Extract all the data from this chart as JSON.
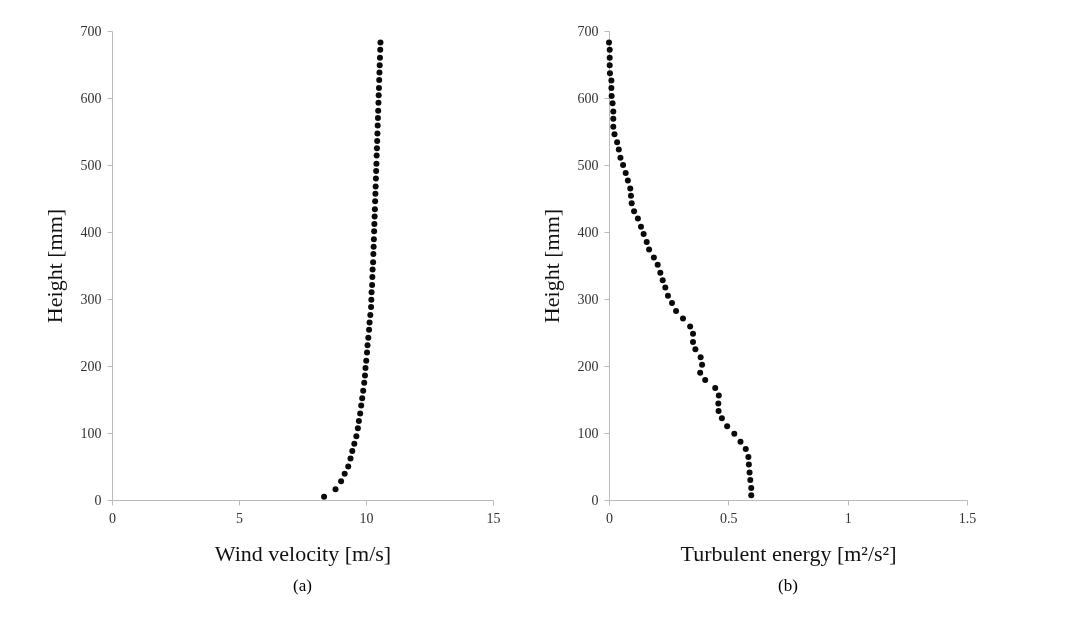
{
  "chart_data": [
    {
      "type": "scatter",
      "title": "(a)",
      "xlabel": "Wind velocity [m/s]",
      "ylabel": "Height [mm]",
      "xlim": [
        0,
        15
      ],
      "xticks": [
        0,
        5,
        10,
        15
      ],
      "ylim": [
        0,
        700
      ],
      "yticks": [
        0,
        100,
        200,
        300,
        400,
        500,
        600,
        700
      ],
      "grid": false,
      "marker": "circle",
      "series": [
        {
          "color": "#0a0a0a",
          "x": [
            8.35,
            8.8,
            9.02,
            9.16,
            9.3,
            9.39,
            9.46,
            9.54,
            9.62,
            9.68,
            9.72,
            9.77,
            9.81,
            9.85,
            9.89,
            9.93,
            9.96,
            9.98,
            10.01,
            10.04,
            10.06,
            10.09,
            10.12,
            10.14,
            10.17,
            10.2,
            10.21,
            10.22,
            10.24,
            10.25,
            10.26,
            10.28,
            10.29,
            10.3,
            10.31,
            10.32,
            10.33,
            10.34,
            10.35,
            10.36,
            10.37,
            10.38,
            10.39,
            10.4,
            10.41,
            10.42,
            10.43,
            10.44,
            10.45,
            10.46,
            10.47,
            10.48,
            10.49,
            10.5,
            10.51,
            10.52,
            10.53,
            10.54,
            10.55,
            10.56,
            10.57
          ],
          "values": [
            5,
            16,
            28,
            39,
            50,
            62,
            73,
            84,
            95,
            107,
            118,
            129,
            141,
            152,
            163,
            175,
            186,
            197,
            208,
            220,
            231,
            242,
            254,
            265,
            276,
            288,
            299,
            310,
            321,
            333,
            344,
            355,
            367,
            378,
            389,
            401,
            412,
            423,
            434,
            446,
            457,
            468,
            480,
            491,
            502,
            514,
            525,
            536,
            547,
            559,
            570,
            581,
            593,
            604,
            615,
            627,
            638,
            649,
            660,
            672,
            683
          ]
        }
      ]
    },
    {
      "type": "scatter",
      "title": "(b)",
      "xlabel": "Turbulent energy [m²/s²]",
      "ylabel": "Height  [mm]",
      "xlim": [
        0,
        1.5
      ],
      "xticks": [
        0,
        0.5,
        1,
        1.5
      ],
      "ylim": [
        0,
        700
      ],
      "yticks": [
        0,
        100,
        200,
        300,
        400,
        500,
        600,
        700
      ],
      "grid": false,
      "marker": "circle",
      "series": [
        {
          "color": "#0a0a0a",
          "x": [
            0.596,
            0.596,
            0.592,
            0.589,
            0.586,
            0.584,
            0.573,
            0.551,
            0.525,
            0.495,
            0.473,
            0.459,
            0.458,
            0.46,
            0.445,
            0.403,
            0.382,
            0.39,
            0.384,
            0.362,
            0.352,
            0.352,
            0.34,
            0.31,
            0.281,
            0.264,
            0.247,
            0.236,
            0.225,
            0.215,
            0.204,
            0.188,
            0.168,
            0.158,
            0.145,
            0.134,
            0.121,
            0.105,
            0.095,
            0.092,
            0.089,
            0.079,
            0.07,
            0.059,
            0.048,
            0.041,
            0.034,
            0.023,
            0.018,
            0.018,
            0.018,
            0.015,
            0.011,
            0.01,
            0.01,
            0.004,
            0.003,
            0.003,
            0.003,
            0
          ],
          "values": [
            7,
            18,
            30,
            41,
            53,
            64,
            76,
            87,
            99,
            110,
            122,
            133,
            144,
            156,
            167,
            179,
            190,
            202,
            213,
            225,
            236,
            248,
            259,
            271,
            282,
            294,
            305,
            317,
            328,
            339,
            351,
            362,
            374,
            385,
            397,
            408,
            420,
            431,
            443,
            454,
            465,
            477,
            488,
            500,
            511,
            523,
            534,
            546,
            557,
            569,
            580,
            592,
            603,
            615,
            626,
            637,
            649,
            660,
            672,
            683
          ]
        }
      ]
    }
  ]
}
